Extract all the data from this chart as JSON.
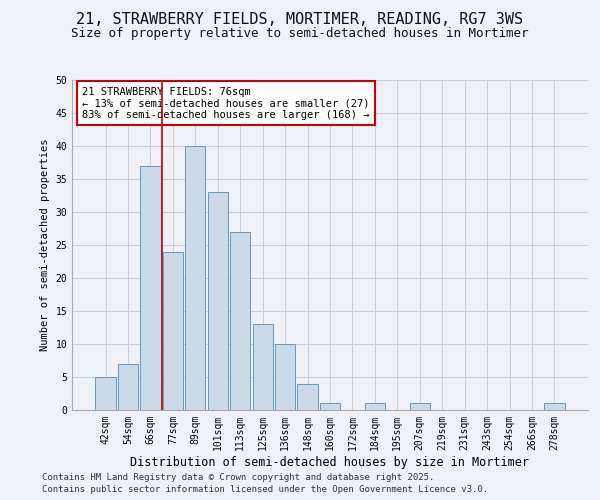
{
  "title": "21, STRAWBERRY FIELDS, MORTIMER, READING, RG7 3WS",
  "subtitle": "Size of property relative to semi-detached houses in Mortimer",
  "xlabel": "Distribution of semi-detached houses by size in Mortimer",
  "ylabel": "Number of semi-detached properties",
  "categories": [
    "42sqm",
    "54sqm",
    "66sqm",
    "77sqm",
    "89sqm",
    "101sqm",
    "113sqm",
    "125sqm",
    "136sqm",
    "148sqm",
    "160sqm",
    "172sqm",
    "184sqm",
    "195sqm",
    "207sqm",
    "219sqm",
    "231sqm",
    "243sqm",
    "254sqm",
    "266sqm",
    "278sqm"
  ],
  "values": [
    5,
    7,
    37,
    24,
    40,
    33,
    27,
    13,
    10,
    4,
    1,
    0,
    1,
    0,
    1,
    0,
    0,
    0,
    0,
    0,
    1
  ],
  "bar_color": "#ccd9e8",
  "bar_edge_color": "#6699bb",
  "vline_x": 2.5,
  "vline_label": "21 STRAWBERRY FIELDS: 76sqm",
  "annotation_line1": "← 13% of semi-detached houses are smaller (27)",
  "annotation_line2": "83% of semi-detached houses are larger (168) →",
  "annotation_box_facecolor": "#ffffff",
  "annotation_box_edge": "#cc0000",
  "vline_color": "#cc0000",
  "grid_color": "#c8ccd8",
  "background_color": "#eef2f8",
  "footer_line1": "Contains HM Land Registry data © Crown copyright and database right 2025.",
  "footer_line2": "Contains public sector information licensed under the Open Government Licence v3.0.",
  "ylim": [
    0,
    50
  ],
  "yticks": [
    0,
    5,
    10,
    15,
    20,
    25,
    30,
    35,
    40,
    45,
    50
  ],
  "title_fontsize": 11,
  "subtitle_fontsize": 9,
  "xlabel_fontsize": 8.5,
  "ylabel_fontsize": 7.5,
  "tick_fontsize": 7,
  "footer_fontsize": 6.5,
  "annotation_fontsize": 7.5
}
